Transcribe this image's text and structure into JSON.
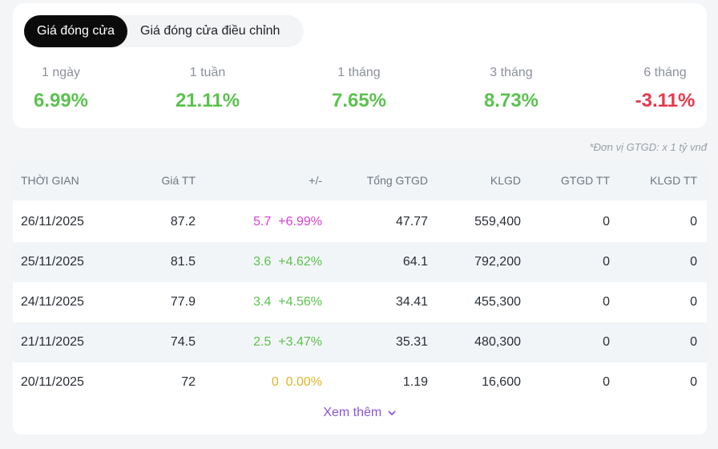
{
  "tabs": [
    {
      "label": "Giá đóng cửa",
      "active": true
    },
    {
      "label": "Giá đóng cửa điều chỉnh",
      "active": false
    }
  ],
  "periods": [
    {
      "label": "1 ngày",
      "value": "6.99%",
      "trend": "up"
    },
    {
      "label": "1 tuần",
      "value": "21.11%",
      "trend": "up"
    },
    {
      "label": "1 tháng",
      "value": "7.65%",
      "trend": "up"
    },
    {
      "label": "3 tháng",
      "value": "8.73%",
      "trend": "up"
    },
    {
      "label": "6 tháng",
      "value": "-3.11%",
      "trend": "down"
    }
  ],
  "note": "*Đơn vị GTGD: x 1 tỷ vnđ",
  "table": {
    "headers": {
      "date": "THỜI GIAN",
      "price": "Giá TT",
      "change": "+/-",
      "gtgd": "Tổng GTGD",
      "klgd": "KLGD",
      "gtgd_tt": "GTGD TT",
      "klgd_tt": "KLGD TT"
    },
    "rows": [
      {
        "date": "26/11/2025",
        "price": "87.2",
        "change": "5.7",
        "change_pct": "+6.99%",
        "trend": "ceil",
        "gtgd": "47.77",
        "klgd": "559,400",
        "gtgd_tt": "0",
        "klgd_tt": "0"
      },
      {
        "date": "25/11/2025",
        "price": "81.5",
        "change": "3.6",
        "change_pct": "+4.62%",
        "trend": "up",
        "gtgd": "64.1",
        "klgd": "792,200",
        "gtgd_tt": "0",
        "klgd_tt": "0"
      },
      {
        "date": "24/11/2025",
        "price": "77.9",
        "change": "3.4",
        "change_pct": "+4.56%",
        "trend": "up",
        "gtgd": "34.41",
        "klgd": "455,300",
        "gtgd_tt": "0",
        "klgd_tt": "0"
      },
      {
        "date": "21/11/2025",
        "price": "74.5",
        "change": "2.5",
        "change_pct": "+3.47%",
        "trend": "up",
        "gtgd": "35.31",
        "klgd": "480,300",
        "gtgd_tt": "0",
        "klgd_tt": "0"
      },
      {
        "date": "20/11/2025",
        "price": "72",
        "change": "0",
        "change_pct": "0.00%",
        "trend": "ref",
        "gtgd": "1.19",
        "klgd": "16,600",
        "gtgd_tt": "0",
        "klgd_tt": "0"
      }
    ]
  },
  "more_label": "Xem thêm",
  "colors": {
    "up": "#5bc24f",
    "down": "#e8384f",
    "ceil": "#d63fd0",
    "ref": "#e2b42a",
    "accent": "#8a55d8"
  }
}
